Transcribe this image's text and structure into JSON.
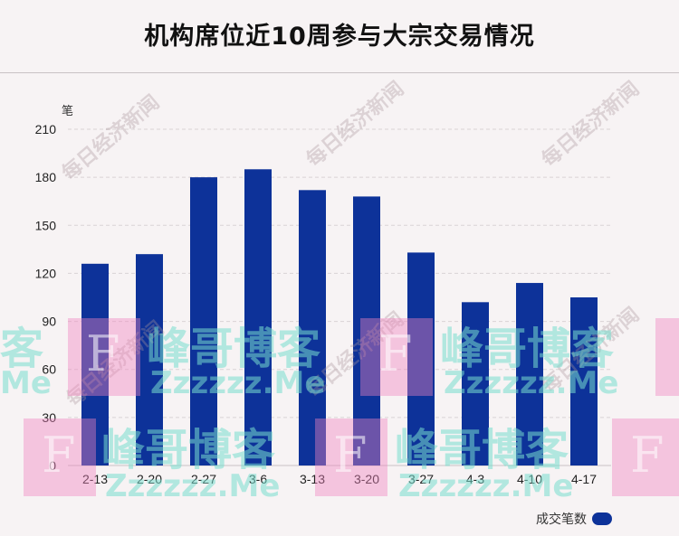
{
  "title": "机构席位近10周参与大宗交易情况",
  "y_unit": "笔",
  "legend_label": "成交笔数",
  "colors": {
    "bar": "#0d3299",
    "grid": "#d9d3d5",
    "axis": "#c8c2c4"
  },
  "chart_data": {
    "type": "bar",
    "categories": [
      "2-13",
      "2-20",
      "2-27",
      "3-6",
      "3-13",
      "3-20",
      "3-27",
      "4-3",
      "4-10",
      "4-17"
    ],
    "series": [
      {
        "name": "成交笔数",
        "values": [
          126,
          132,
          180,
          185,
          172,
          168,
          133,
          102,
          114,
          105
        ]
      }
    ],
    "y_ticks": [
      0,
      30,
      60,
      90,
      120,
      150,
      180,
      210
    ],
    "ylim": [
      0,
      210
    ],
    "ylabel": "笔",
    "grid": true,
    "legend": "bottom-right"
  },
  "watermarks": {
    "brand_text": "峰哥博客",
    "domain_text": "Zzzzzz.Me",
    "partial_brand": "客",
    "partial_domain": "Me",
    "letter": "F",
    "news_text": "每日经济新闻"
  }
}
